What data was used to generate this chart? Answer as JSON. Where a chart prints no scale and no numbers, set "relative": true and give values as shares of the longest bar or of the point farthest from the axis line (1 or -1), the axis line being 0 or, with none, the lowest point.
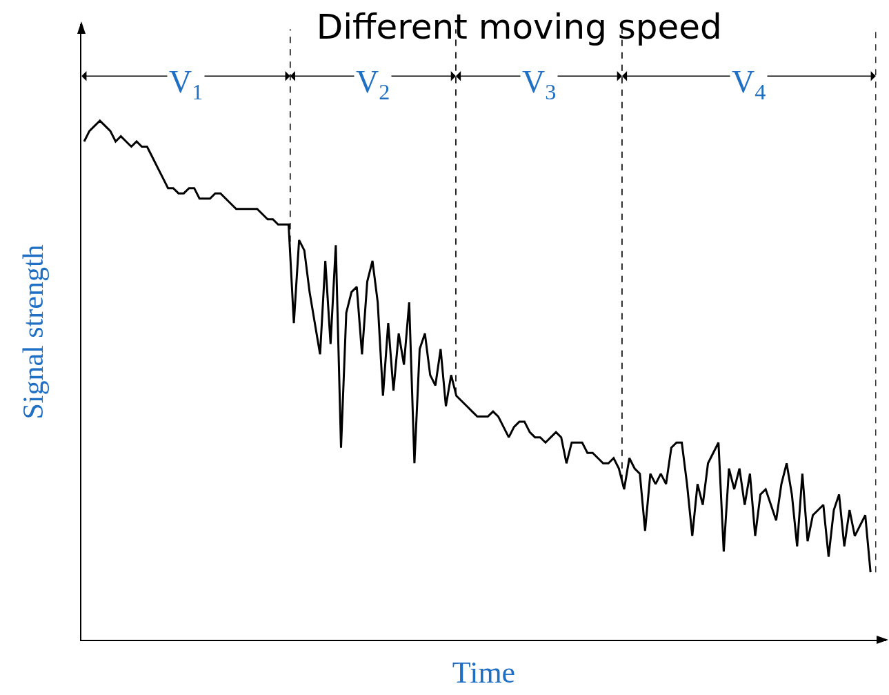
{
  "chart_data": {
    "type": "line",
    "title": "Different moving speed",
    "xlabel": "Time",
    "ylabel": "Signal strength",
    "relative": true,
    "categories": [
      null,
      null,
      null,
      null,
      null,
      null,
      null,
      null,
      null,
      null,
      null,
      null,
      null,
      null,
      null,
      null,
      null,
      null,
      null,
      null,
      null,
      null,
      null,
      null,
      null,
      null,
      null,
      null,
      null,
      null,
      null,
      null,
      null,
      null,
      null,
      null,
      null,
      null,
      null,
      null,
      null,
      null,
      null,
      null,
      null,
      null,
      null,
      null,
      null,
      null,
      null,
      null,
      null,
      null,
      null,
      null,
      null,
      null,
      null,
      null,
      null,
      null,
      null,
      null,
      null,
      null,
      null,
      null,
      null,
      null,
      null,
      null,
      null,
      null,
      null,
      null,
      null,
      null,
      null,
      null,
      null,
      null,
      null,
      null,
      null,
      null,
      null,
      null,
      null,
      null,
      null,
      null,
      null,
      null,
      null,
      null,
      null,
      null,
      null,
      null,
      null,
      null,
      null,
      null,
      null,
      null,
      null,
      null,
      null,
      null,
      null,
      null,
      null,
      null,
      null,
      null,
      null,
      null,
      null,
      null,
      null,
      null,
      null,
      null,
      null,
      null,
      null,
      null,
      null,
      null,
      null,
      null,
      null,
      null,
      null,
      null,
      null,
      null,
      null,
      null,
      null,
      null,
      null,
      null,
      null,
      null,
      null,
      null,
      null,
      null,
      null
    ],
    "series": [
      {
        "color": "#000000",
        "values": [
          0.96,
          0.98,
          0.99,
          1,
          0.99,
          0.98,
          0.96,
          0.97,
          0.96,
          0.95,
          0.96,
          0.95,
          0.95,
          0.93,
          0.91,
          0.89,
          0.87,
          0.87,
          0.86,
          0.86,
          0.87,
          0.87,
          0.85,
          0.85,
          0.85,
          0.86,
          0.86,
          0.85,
          0.84,
          0.83,
          0.83,
          0.83,
          0.83,
          0.83,
          0.82,
          0.81,
          0.81,
          0.8,
          0.8,
          0.8,
          0.61,
          0.77,
          0.75,
          0.67,
          0.61,
          0.55,
          0.73,
          0.57,
          0.76,
          0.37,
          0.63,
          0.67,
          0.68,
          0.55,
          0.69,
          0.73,
          0.65,
          0.47,
          0.61,
          0.48,
          0.59,
          0.53,
          0.65,
          0.34,
          0.56,
          0.59,
          0.51,
          0.49,
          0.56,
          0.45,
          0.51,
          0.47,
          0.46,
          0.45,
          0.44,
          0.43,
          0.43,
          0.43,
          0.44,
          0.43,
          0.41,
          0.39,
          0.41,
          0.42,
          0.42,
          0.4,
          0.39,
          0.39,
          0.38,
          0.39,
          0.4,
          0.39,
          0.34,
          0.38,
          0.38,
          0.38,
          0.36,
          0.36,
          0.35,
          0.34,
          0.34,
          0.35,
          0.33,
          0.29,
          0.35,
          0.33,
          0.32,
          0.21,
          0.32,
          0.3,
          0.32,
          0.3,
          0.37,
          0.38,
          0.38,
          0.3,
          0.2,
          0.3,
          0.26,
          0.34,
          0.36,
          0.38,
          0.17,
          0.33,
          0.29,
          0.33,
          0.26,
          0.32,
          0.2,
          0.28,
          0.29,
          0.26,
          0.23,
          0.3,
          0.34,
          0.28,
          0.18,
          0.32,
          0.19,
          0.24,
          0.25,
          0.26,
          0.16,
          0.25,
          0.28,
          0.18,
          0.25,
          0.2,
          0.22,
          0.24,
          0.13
        ]
      }
    ],
    "annotations": [
      "V$_{1}$",
      "V$_{2}$",
      "V$_{3}$",
      "V$_{4}$"
    ]
  }
}
